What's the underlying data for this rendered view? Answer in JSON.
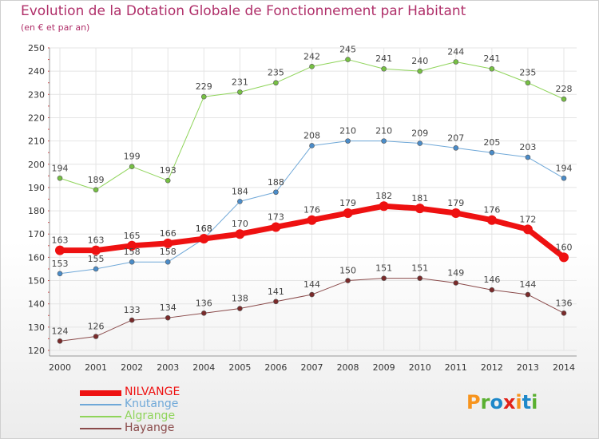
{
  "title": "Evolution de la Dotation Globale de Fonctionnement par Habitant",
  "subtitle": "(en € et par an)",
  "logo": {
    "text": "Proxiti",
    "colors": [
      "#f7941d",
      "#5ab031",
      "#1e88c9",
      "#e2231a",
      "#f7941d",
      "#1e88c9",
      "#5ab031"
    ]
  },
  "chart_data": {
    "type": "line",
    "x": [
      2000,
      2001,
      2002,
      2003,
      2004,
      2005,
      2006,
      2007,
      2008,
      2009,
      2010,
      2011,
      2012,
      2013,
      2014
    ],
    "ylim": [
      120,
      250
    ],
    "yticks": [
      120,
      130,
      140,
      150,
      160,
      170,
      180,
      190,
      200,
      210,
      220,
      230,
      240,
      250
    ],
    "grid": true,
    "legend_position": "bottom-left",
    "series": [
      {
        "name": "Algrange",
        "color": "#8fd45a",
        "marker_color": "#76c043",
        "width": 1,
        "values": [
          194,
          189,
          199,
          193,
          229,
          231,
          235,
          242,
          245,
          241,
          240,
          244,
          241,
          235,
          228
        ]
      },
      {
        "name": "Knutange",
        "color": "#6fa8d8",
        "marker_color": "#4a8cc9",
        "width": 1,
        "values": [
          153,
          155,
          158,
          158,
          168,
          184,
          188,
          208,
          210,
          210,
          209,
          207,
          205,
          203,
          194
        ]
      },
      {
        "name": "Hayange",
        "color": "#8a4a4a",
        "marker_color": "#7a2a2a",
        "width": 1,
        "values": [
          124,
          126,
          133,
          134,
          136,
          138,
          141,
          144,
          150,
          151,
          151,
          149,
          146,
          144,
          136
        ]
      },
      {
        "name": "NILVANGE",
        "color": "#ee1111",
        "marker_color": "#ee1111",
        "width": 7,
        "values": [
          163,
          163,
          165,
          166,
          168,
          170,
          173,
          176,
          179,
          182,
          181,
          179,
          176,
          172,
          160
        ]
      }
    ]
  }
}
